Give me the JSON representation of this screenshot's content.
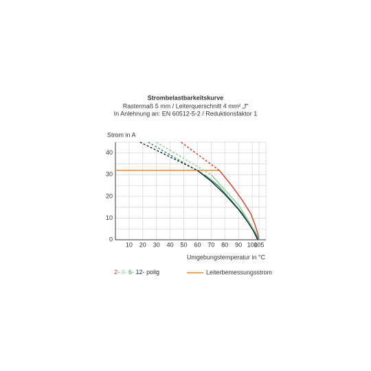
{
  "chart_data": {
    "type": "line",
    "title": "Strombelastbarkeitskurve",
    "subtitle": "Rastermaß 5 mm / Leiterquerschnitt 4 mm² „f“",
    "subtitle2": "In Anlehnung an: EN 60512-5-2 / Reduktionsfaktor 1",
    "y_label": "Strom in A",
    "x_label": "Umgebungstemperatur in °C",
    "xlim": [
      0,
      110
    ],
    "ylim": [
      0,
      45
    ],
    "xticks": [
      10,
      20,
      30,
      40,
      50,
      60,
      70,
      80,
      90,
      100,
      105
    ],
    "yticks": [
      0,
      10,
      20,
      30,
      40
    ],
    "yminor": [
      5,
      15,
      25,
      35
    ],
    "grid": true,
    "legend_suffix": "polig",
    "series": [
      {
        "name": "2-",
        "color": "#d8412f",
        "x": [
          76,
          85,
          93,
          99,
          102,
          104,
          105
        ],
        "values": [
          32,
          25,
          18,
          12,
          7,
          3,
          0
        ],
        "dash_x": [
          48,
          76
        ],
        "dash_values": [
          45,
          32
        ]
      },
      {
        "name": "4-",
        "color": "#8fd18f",
        "x": [
          70,
          80,
          90,
          97,
          102,
          105
        ],
        "values": [
          30,
          23,
          16,
          9,
          4,
          0
        ],
        "dash_x": [
          30,
          70
        ],
        "dash_values": [
          45,
          30
        ]
      },
      {
        "name": "6-",
        "color": "#3a9a5a",
        "x": [
          65,
          75,
          85,
          93,
          99,
          103,
          105
        ],
        "values": [
          30,
          25,
          18,
          12,
          6,
          2,
          0
        ],
        "dash_x": [
          24,
          65
        ],
        "dash_values": [
          45,
          30
        ]
      },
      {
        "name": "12-",
        "color": "#1c2a4a",
        "x": [
          60,
          70,
          80,
          90,
          97,
          101,
          104
        ],
        "values": [
          32,
          27,
          21,
          14,
          8,
          4,
          0
        ],
        "dash_x": [
          18,
          60
        ],
        "dash_values": [
          45,
          32
        ]
      }
    ],
    "reference": {
      "name": "Leiterbemessungsstrom",
      "color": "#e8892a",
      "x": [
        0,
        76
      ],
      "values": [
        32,
        32
      ]
    }
  }
}
